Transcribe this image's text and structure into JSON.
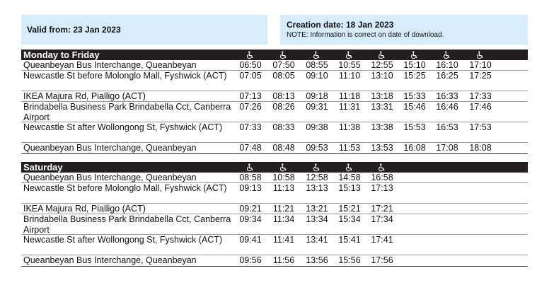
{
  "header": {
    "valid_from": "Valid from: 23 Jan 2023",
    "creation_date": "Creation date: 18 Jan 2023",
    "note": "NOTE: Information is correct on date of download."
  },
  "accessibility_icon": "wheelchair-icon",
  "tables": [
    {
      "id": "mf",
      "title": "Monday to Friday",
      "trips": 8,
      "rows": [
        {
          "stop": "Queanbeyan Bus Interchange, Queanbeyan",
          "times": [
            "06:50",
            "07:50",
            "08:55",
            "10:55",
            "12:55",
            "15:10",
            "16:10",
            "17:10"
          ]
        },
        {
          "stop": "Newcastle St before Molonglo Mall, Fyshwick (ACT)",
          "times": [
            "07:05",
            "08:05",
            "09:10",
            "11:10",
            "13:10",
            "15:25",
            "16:25",
            "17:25"
          ]
        },
        {
          "stop": "IKEA Majura Rd, Pialligo (ACT)",
          "times": [
            "07:13",
            "08:13",
            "09:18",
            "11:18",
            "13:18",
            "15:33",
            "16:33",
            "17:33"
          ]
        },
        {
          "stop": "Brindabella Business Park Brindabella Cct, Canberra Airport",
          "times": [
            "07:26",
            "08:26",
            "09:31",
            "11:31",
            "13:31",
            "15:46",
            "16:46",
            "17:46"
          ]
        },
        {
          "stop": "Newcastle St after Wollongong St, Fyshwick (ACT)",
          "times": [
            "07:33",
            "08:33",
            "09:38",
            "11:38",
            "13:38",
            "15:53",
            "16:53",
            "17:53"
          ]
        },
        {
          "stop": "Queanbeyan Bus Interchange, Queanbeyan",
          "times": [
            "07:48",
            "08:48",
            "09:53",
            "11:53",
            "13:53",
            "16:08",
            "17:08",
            "18:08"
          ]
        }
      ]
    },
    {
      "id": "sat",
      "title": "Saturday",
      "trips": 5,
      "rows": [
        {
          "stop": "Queanbeyan Bus Interchange, Queanbeyan",
          "times": [
            "08:58",
            "10:58",
            "12:58",
            "14:58",
            "16:58"
          ]
        },
        {
          "stop": "Newcastle St before Molonglo Mall, Fyshwick (ACT)",
          "times": [
            "09:13",
            "11:13",
            "13:13",
            "15:13",
            "17:13"
          ]
        },
        {
          "stop": "IKEA Majura Rd, Pialligo (ACT)",
          "times": [
            "09:21",
            "11:21",
            "13:21",
            "15:21",
            "17:21"
          ]
        },
        {
          "stop": "Brindabella Business Park Brindabella Cct, Canberra Airport",
          "times": [
            "09:34",
            "11:34",
            "13:34",
            "15:34",
            "17:34"
          ]
        },
        {
          "stop": "Newcastle St after Wollongong St, Fyshwick (ACT)",
          "times": [
            "09:41",
            "11:41",
            "13:41",
            "15:41",
            "17:41"
          ]
        },
        {
          "stop": "Queanbeyan Bus Interchange, Queanbeyan",
          "times": [
            "09:56",
            "11:56",
            "13:56",
            "15:56",
            "17:56"
          ]
        }
      ]
    }
  ]
}
